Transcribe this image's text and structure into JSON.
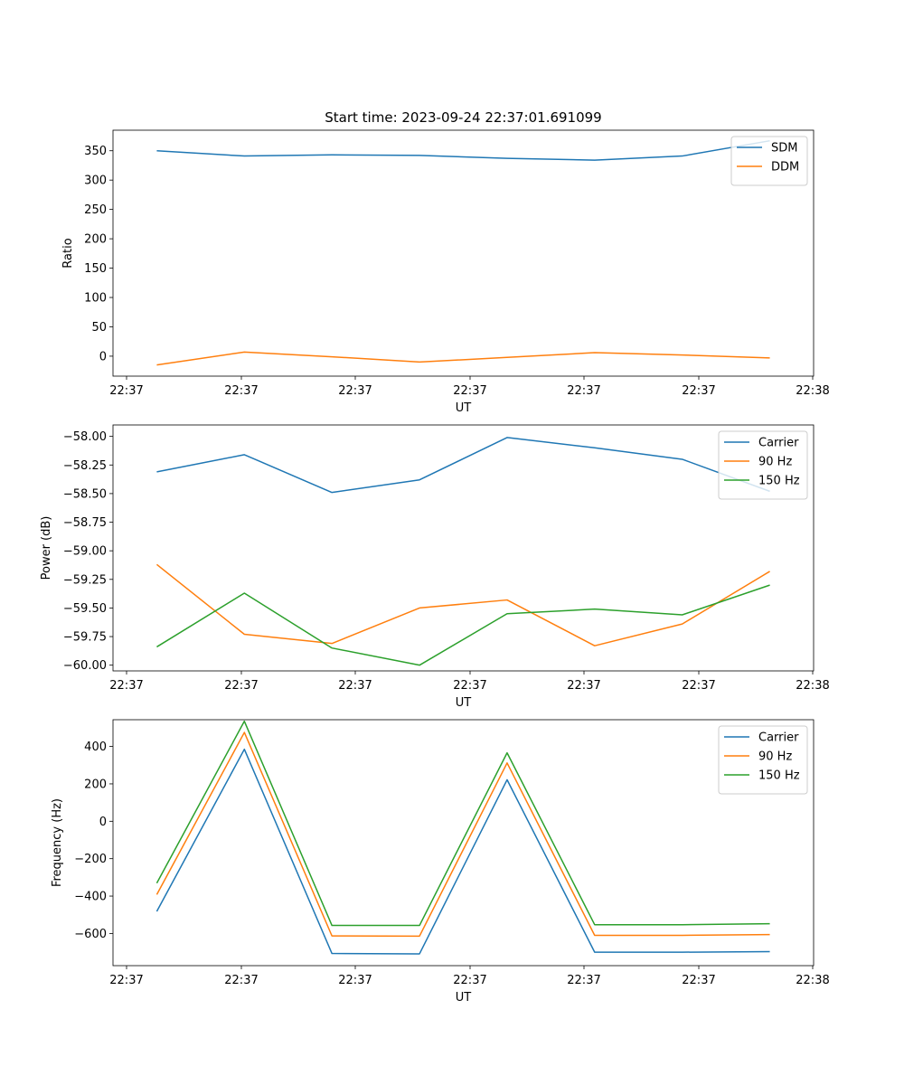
{
  "figure": {
    "title": "Start time: 2023-09-24 22:37:01.691099"
  },
  "colors": {
    "blue": "#1f77b4",
    "orange": "#ff7f0e",
    "green": "#2ca02c"
  },
  "chart_data": [
    {
      "type": "line",
      "xlabel": "UT",
      "ylabel": "Ratio",
      "x_ticks": [
        "22:37",
        "22:37",
        "22:37",
        "22:37",
        "22:37",
        "22:37",
        "22:38"
      ],
      "xlim": [
        -0.5,
        7.5
      ],
      "ylim": [
        -34,
        385
      ],
      "y_ticks": [
        0,
        50,
        100,
        150,
        200,
        250,
        300,
        350
      ],
      "y_tick_labels": [
        "0",
        "50",
        "100",
        "150",
        "200",
        "250",
        "300",
        "350"
      ],
      "legend_position": "top-right",
      "series": [
        {
          "name": "SDM",
          "color": "#1f77b4",
          "x": [
            0,
            1,
            2,
            3,
            4,
            5,
            6,
            7
          ],
          "values": [
            350,
            341,
            343,
            342,
            337,
            334,
            341,
            367
          ]
        },
        {
          "name": "DDM",
          "color": "#ff7f0e",
          "x": [
            0,
            1,
            2,
            3,
            4,
            5,
            6,
            7
          ],
          "values": [
            -15,
            7,
            -1,
            -10,
            -2,
            6,
            2,
            -3
          ]
        }
      ]
    },
    {
      "type": "line",
      "xlabel": "UT",
      "ylabel": "Power (dB)",
      "x_ticks": [
        "22:37",
        "22:37",
        "22:37",
        "22:37",
        "22:37",
        "22:37",
        "22:38"
      ],
      "xlim": [
        -0.5,
        7.5
      ],
      "ylim": [
        -60.05,
        -57.9
      ],
      "y_ticks": [
        -60.0,
        -59.75,
        -59.5,
        -59.25,
        -59.0,
        -58.75,
        -58.5,
        -58.25,
        -58.0
      ],
      "y_tick_labels": [
        "−60.00",
        "−59.75",
        "−59.50",
        "−59.25",
        "−59.00",
        "−58.75",
        "−58.50",
        "−58.25",
        "−58.00"
      ],
      "legend_position": "top-right",
      "series": [
        {
          "name": "Carrier",
          "color": "#1f77b4",
          "x": [
            0,
            1,
            2,
            3,
            4,
            5,
            6,
            7
          ],
          "values": [
            -58.31,
            -58.16,
            -58.49,
            -58.38,
            -58.01,
            -58.1,
            -58.2,
            -58.48
          ]
        },
        {
          "name": "90 Hz",
          "color": "#ff7f0e",
          "x": [
            0,
            1,
            2,
            3,
            4,
            5,
            6,
            7
          ],
          "values": [
            -59.12,
            -59.73,
            -59.81,
            -59.5,
            -59.43,
            -59.83,
            -59.64,
            -59.18
          ]
        },
        {
          "name": "150 Hz",
          "color": "#2ca02c",
          "x": [
            0,
            1,
            2,
            3,
            4,
            5,
            6,
            7
          ],
          "values": [
            -59.84,
            -59.37,
            -59.85,
            -60.0,
            -59.55,
            -59.51,
            -59.56,
            -59.3
          ]
        }
      ]
    },
    {
      "type": "line",
      "xlabel": "UT",
      "ylabel": "Frequency (Hz)",
      "x_ticks": [
        "22:37",
        "22:37",
        "22:37",
        "22:37",
        "22:37",
        "22:37",
        "22:38"
      ],
      "xlim": [
        -0.5,
        7.5
      ],
      "ylim": [
        -772,
        543
      ],
      "y_ticks": [
        -600,
        -400,
        -200,
        0,
        200,
        400
      ],
      "y_tick_labels": [
        "−600",
        "−400",
        "−200",
        "0",
        "200",
        "400"
      ],
      "legend_position": "top-right",
      "series": [
        {
          "name": "Carrier",
          "color": "#1f77b4",
          "x": [
            0,
            1,
            2,
            3,
            4,
            5,
            6,
            7
          ],
          "values": [
            -482,
            385,
            -707,
            -709,
            222,
            -700,
            -700,
            -697
          ]
        },
        {
          "name": "90 Hz",
          "color": "#ff7f0e",
          "x": [
            0,
            1,
            2,
            3,
            4,
            5,
            6,
            7
          ],
          "values": [
            -392,
            475,
            -613,
            -614,
            312,
            -610,
            -610,
            -606
          ]
        },
        {
          "name": "150 Hz",
          "color": "#2ca02c",
          "x": [
            0,
            1,
            2,
            3,
            4,
            5,
            6,
            7
          ],
          "values": [
            -331,
            535,
            -557,
            -557,
            366,
            -553,
            -553,
            -548
          ]
        }
      ]
    }
  ]
}
